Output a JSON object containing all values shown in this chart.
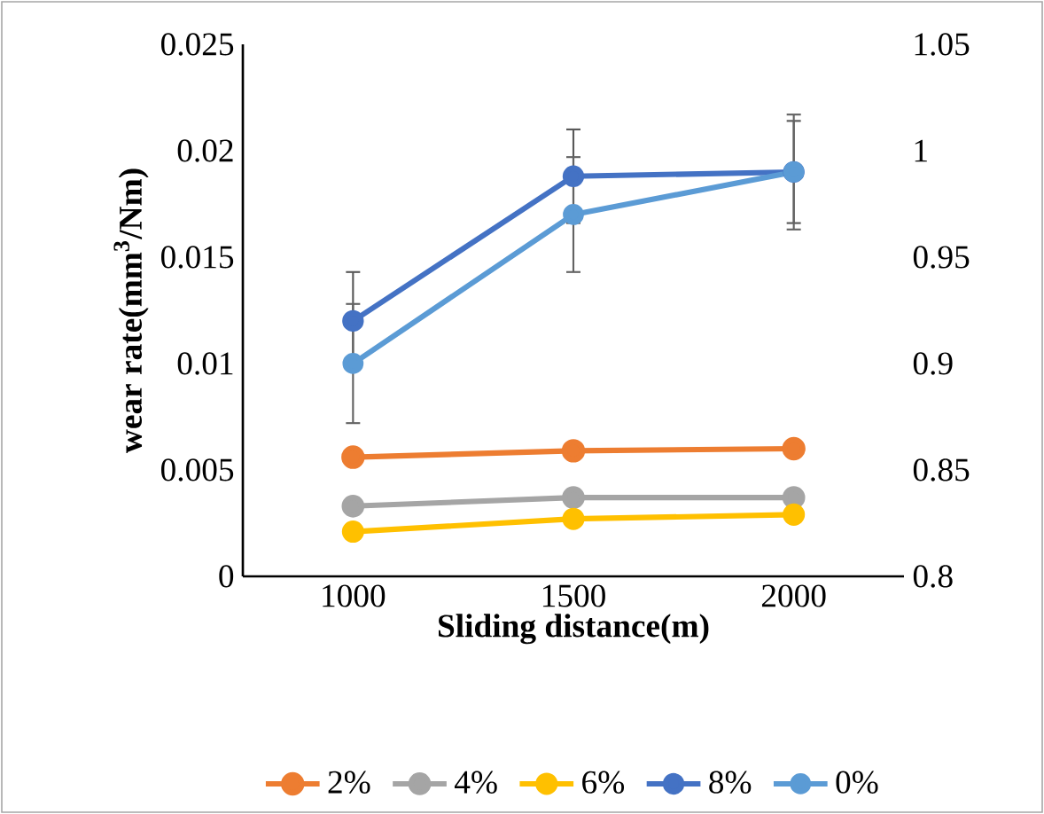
{
  "chart_data": {
    "type": "line",
    "xlabel": "Sliding distance(m)",
    "ylabel": "wear rate(mm$^{3}$/Nm)",
    "categories": [
      "1000",
      "1500",
      "2000"
    ],
    "ylim": [
      0,
      0.025
    ],
    "yticks": [
      0,
      0.005,
      0.01,
      0.015,
      0.02,
      0.025
    ],
    "y2lim": [
      0.8,
      1.05
    ],
    "y2ticks": [
      0.8,
      0.85,
      0.9,
      0.95,
      1,
      1.05
    ],
    "marker": "circle",
    "line_style": "solid",
    "legend": "bottom",
    "grid": false,
    "series": [
      {
        "name": "2%",
        "color": "#ed7d31",
        "values": [
          0.0056,
          0.0059,
          0.006
        ]
      },
      {
        "name": "4%",
        "color": "#a5a5a5",
        "values": [
          0.0033,
          0.0037,
          0.0037
        ]
      },
      {
        "name": "6%",
        "color": "#ffc000",
        "values": [
          0.0021,
          0.0027,
          0.0029
        ]
      },
      {
        "name": "8%",
        "color": "#4472c4",
        "values": [
          0.012,
          0.0188,
          0.019
        ],
        "errors": [
          0.0023,
          0.0022,
          0.0024
        ]
      },
      {
        "name": "0%",
        "color": "#5b9bd5",
        "values": [
          0.01,
          0.017,
          0.019
        ],
        "errors": [
          0.0028,
          0.0027,
          0.0027
        ]
      }
    ]
  }
}
